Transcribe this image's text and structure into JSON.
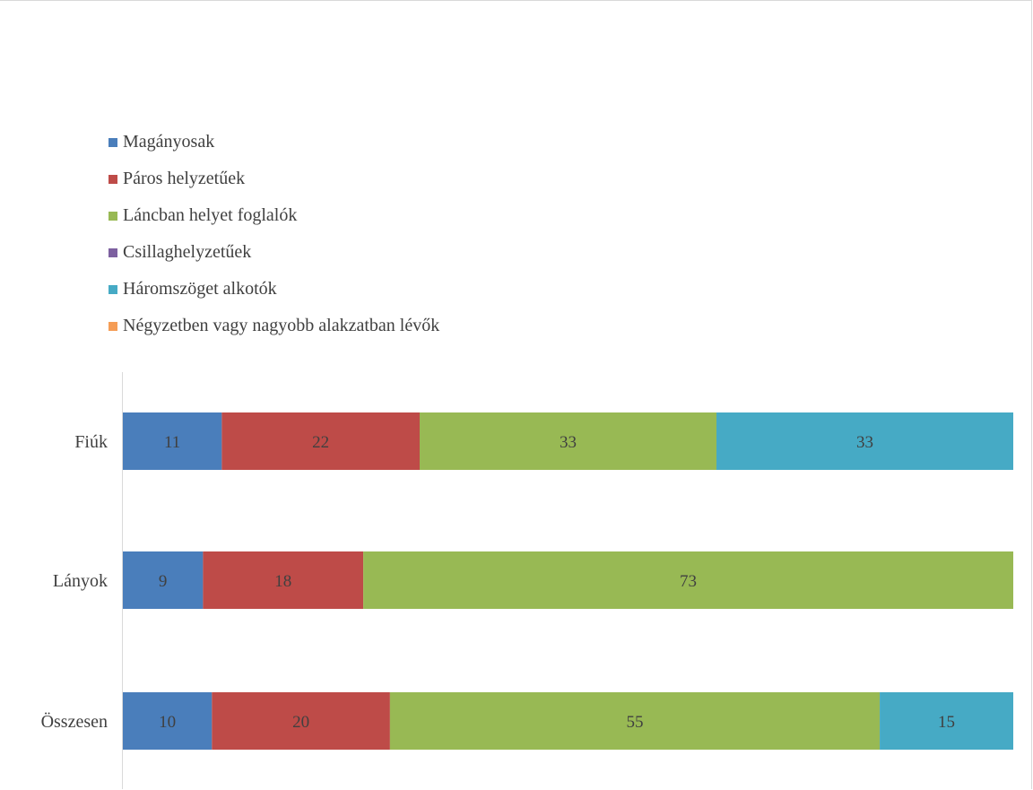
{
  "chart_data": {
    "type": "bar",
    "orientation": "horizontal",
    "stacked": "percent",
    "categories": [
      "Fiúk",
      "Lányok",
      "Összesen"
    ],
    "series": [
      {
        "name": "Magányosak",
        "color": "#4a7ebb",
        "values": [
          11,
          9,
          10
        ]
      },
      {
        "name": "Páros helyzetűek",
        "color": "#be4b48",
        "values": [
          22,
          18,
          20
        ]
      },
      {
        "name": "Láncban helyet foglalók",
        "color": "#98b954",
        "values": [
          33,
          73,
          55
        ]
      },
      {
        "name": "Csillaghelyzetűek",
        "color": "#7d60a0",
        "values": [
          0,
          0,
          0
        ]
      },
      {
        "name": "Háromszöget alkotók",
        "color": "#46aac5",
        "values": [
          33,
          0,
          15
        ]
      },
      {
        "name": "Négyzetben vagy nagyobb alakzatban lévők",
        "color": "#f59d56",
        "values": [
          0,
          0,
          0
        ]
      }
    ],
    "data_labels": true,
    "legend_position": "top-left",
    "grid": false,
    "title": "",
    "xlabel": "",
    "ylabel": ""
  }
}
